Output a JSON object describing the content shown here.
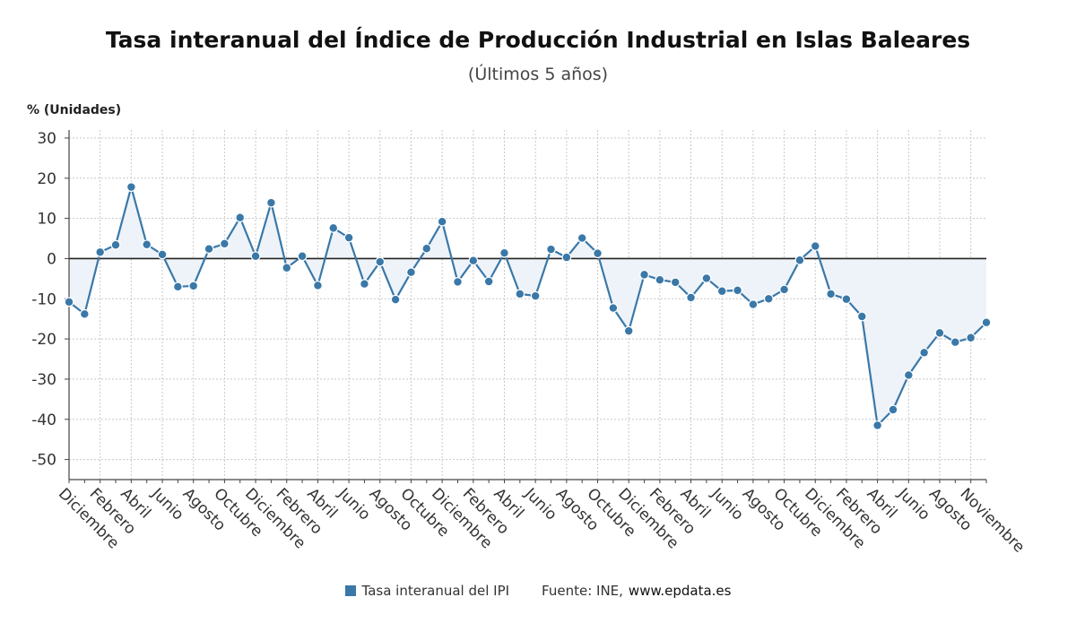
{
  "title": "Tasa interanual del Índice de Producción Industrial en Islas Baleares",
  "subtitle": "(Últimos 5 años)",
  "unit_label": "% (Unidades)",
  "legend": {
    "label": "Tasa interanual del IPI",
    "color": "#3a78a8"
  },
  "source": {
    "prefix": "Fuente: INE,",
    "site": "www.epdata.es"
  },
  "colors": {
    "line": "#3a78a8",
    "marker": "#3a78a8",
    "fill": "#eef3f9",
    "grid": "#c8c8c8",
    "zero_line": "#222222"
  },
  "chart_data": {
    "type": "line",
    "ylabel": "% (Unidades)",
    "ylim": [
      -55,
      32
    ],
    "yticks": [
      30,
      20,
      10,
      0,
      -10,
      -20,
      -30,
      -40,
      -50
    ],
    "grid": true,
    "legend_position": "bottom",
    "x_tick_labels": [
      "Diciembre",
      "Febrero",
      "Abril",
      "Junio",
      "Agosto",
      "Octubre",
      "Diciembre",
      "Febrero",
      "Abril",
      "Junio",
      "Agosto",
      "Octubre",
      "Diciembre",
      "Febrero",
      "Abril",
      "Junio",
      "Agosto",
      "Octubre",
      "Diciembre",
      "Febrero",
      "Abril",
      "Junio",
      "Agosto",
      "Octubre",
      "Diciembre",
      "Febrero",
      "Abril",
      "Junio",
      "Agosto",
      "Noviembre"
    ],
    "series": [
      {
        "name": "Tasa interanual del IPI",
        "values": [
          -10.8,
          -13.8,
          1.6,
          3.4,
          17.8,
          3.5,
          1.0,
          -7.0,
          -6.8,
          2.4,
          3.7,
          10.2,
          0.6,
          13.9,
          -2.3,
          0.6,
          -6.7,
          7.6,
          5.2,
          -6.3,
          -0.8,
          -10.2,
          -3.4,
          2.5,
          9.2,
          -5.8,
          -0.5,
          -5.7,
          1.4,
          -8.8,
          -9.3,
          2.3,
          0.3,
          5.1,
          1.3,
          -12.3,
          -18.0,
          -4.0,
          -5.3,
          -5.9,
          -9.7,
          -4.9,
          -8.1,
          -7.9,
          -11.4,
          -10.0,
          -7.7,
          -0.4,
          3.1,
          -8.8,
          -10.1,
          -14.4,
          -41.5,
          -37.6,
          -29.0,
          -23.4,
          -18.5,
          -20.8,
          -19.7,
          -15.9
        ]
      }
    ]
  }
}
